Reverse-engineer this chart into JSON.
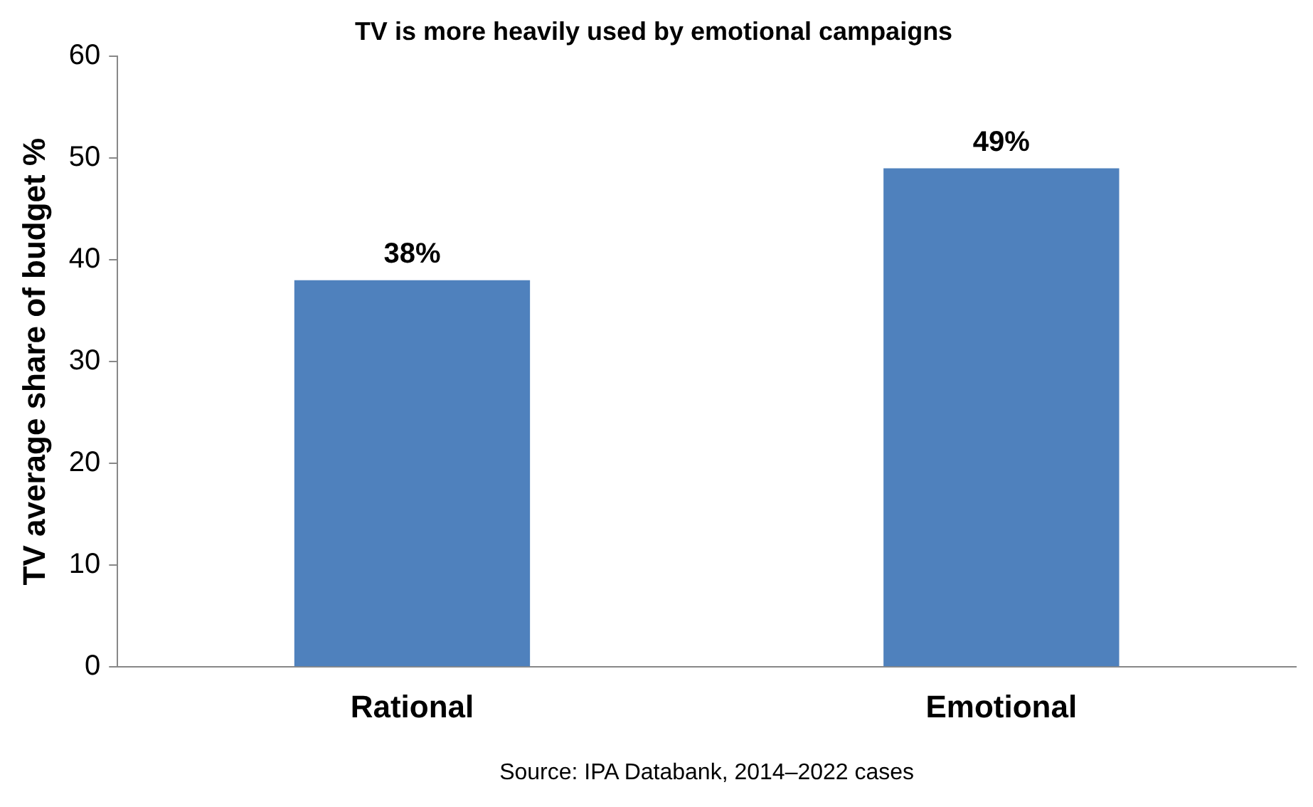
{
  "chart_data": {
    "type": "bar",
    "title": "TV is more heavily used by emotional campaigns",
    "ylabel": "TV average share of budget %",
    "categories": [
      "Rational",
      "Emotional"
    ],
    "values": [
      38,
      49
    ],
    "value_labels": [
      "38%",
      "49%"
    ],
    "color": "#4f81bd",
    "ylim": [
      0,
      60
    ],
    "yticks": [
      0,
      10,
      20,
      30,
      40,
      50,
      60
    ],
    "grid": false,
    "legend": false,
    "annotations": [
      "Source: IPA Databank, 2014–2022 cases"
    ]
  }
}
